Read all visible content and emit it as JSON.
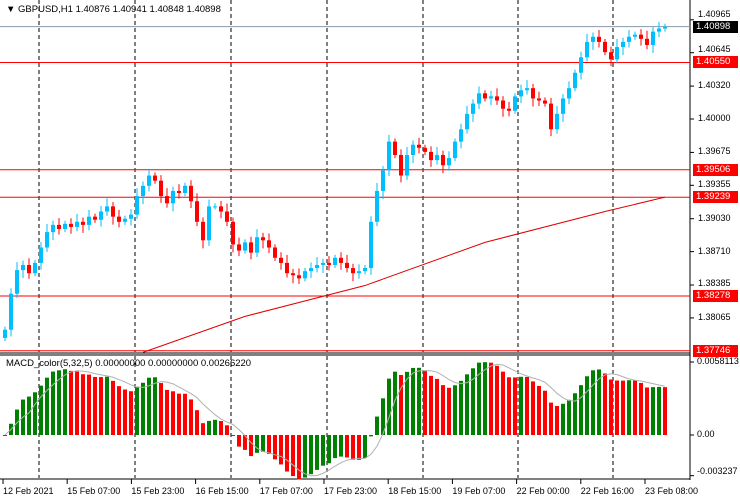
{
  "header": {
    "symbol_line": "GBPUSD,H1  1.40876 1.40941 1.40848 1.40898",
    "menu_icon": "triangle-down-icon"
  },
  "macd_header": "MACD_color(5,32,5) 0.00000000 0.00000000 0.00266220",
  "colors": {
    "bull": "#00bfff",
    "bear": "#ff0000",
    "level": "#ff0000",
    "macd_up": "#008000",
    "macd_down": "#ff0000",
    "signal": "#b0b0b0",
    "ma": "#e00000"
  },
  "price_axis": {
    "ticks": [
      "1.40965",
      "1.40645",
      "1.40320",
      "1.40000",
      "1.39675",
      "1.39355",
      "1.39030",
      "1.38710",
      "1.38385",
      "1.38065"
    ]
  },
  "levels": [
    {
      "label": "1.40898",
      "value": 1.40898,
      "kind": "current"
    },
    {
      "label": "1.40550",
      "value": 1.4055,
      "kind": "level"
    },
    {
      "label": "1.39506",
      "value": 1.39506,
      "kind": "level"
    },
    {
      "label": "1.39239",
      "value": 1.39239,
      "kind": "level"
    },
    {
      "label": "1.38278",
      "value": 1.38278,
      "kind": "level"
    },
    {
      "label": "1.37746",
      "value": 1.37746,
      "kind": "level"
    }
  ],
  "macd_axis": {
    "ticks": [
      {
        "label": "0.0058113",
        "value": 0.0058113
      },
      {
        "label": "0.00",
        "value": 0
      },
      {
        "label": "-0.003237",
        "value": -0.003237
      }
    ]
  },
  "time_axis": {
    "ticks": [
      "12 Feb 2021",
      "15 Feb 07:00",
      "15 Feb 23:00",
      "16 Feb 15:00",
      "17 Feb 07:00",
      "17 Feb 23:00",
      "18 Feb 15:00",
      "19 Feb 07:00",
      "22 Feb 00:00",
      "22 Feb 16:00",
      "23 Feb 08:00"
    ]
  },
  "chart_data": {
    "type": "candlestick",
    "symbol": "GBPUSD",
    "timeframe": "H1",
    "ylim": [
      1.377,
      1.41
    ],
    "closes": [
      1.3795,
      1.383,
      1.3853,
      1.3858,
      1.385,
      1.386,
      1.3875,
      1.389,
      1.3897,
      1.3893,
      1.3898,
      1.3895,
      1.39,
      1.3897,
      1.3905,
      1.3902,
      1.391,
      1.3915,
      1.3905,
      1.39,
      1.3903,
      1.3907,
      1.3925,
      1.3935,
      1.3945,
      1.394,
      1.3925,
      1.3918,
      1.393,
      1.3928,
      1.3935,
      1.392,
      1.39,
      1.3882,
      1.3915,
      1.3915,
      1.391,
      1.39,
      1.3878,
      1.3872,
      1.388,
      1.387,
      1.3885,
      1.3882,
      1.3875,
      1.3865,
      1.386,
      1.385,
      1.3848,
      1.3845,
      1.3852,
      1.3855,
      1.3858,
      1.386,
      1.3858,
      1.3865,
      1.386,
      1.3855,
      1.385,
      1.3852,
      1.3855,
      1.39,
      1.393,
      1.395,
      1.3978,
      1.3965,
      1.3945,
      1.3965,
      1.3975,
      1.3972,
      1.3968,
      1.396,
      1.3965,
      1.3955,
      1.3962,
      1.3978,
      1.399,
      1.4005,
      1.4015,
      1.4025,
      1.402,
      1.4022,
      1.4018,
      1.401,
      1.4008,
      1.4022,
      1.4028,
      1.403,
      1.402,
      1.4018,
      1.4015,
      1.399,
      1.4005,
      1.402,
      1.403,
      1.4045,
      1.406,
      1.4075,
      1.408,
      1.4075,
      1.4065,
      1.4058,
      1.407,
      1.4075,
      1.408,
      1.4082,
      1.4078,
      1.4072,
      1.4085,
      1.4088,
      1.40898
    ],
    "moving_average": [
      {
        "index": 23,
        "value": 1.3773
      },
      {
        "index": 40,
        "value": 1.3808
      },
      {
        "index": 60,
        "value": 1.3838
      },
      {
        "index": 80,
        "value": 1.388
      },
      {
        "index": 100,
        "value": 1.391
      },
      {
        "index": 110,
        "value": 1.3924
      }
    ],
    "macd": {
      "fast": 5,
      "slow": 32,
      "signal": 5,
      "ylim": [
        -0.003237,
        0.0058113
      ]
    }
  }
}
